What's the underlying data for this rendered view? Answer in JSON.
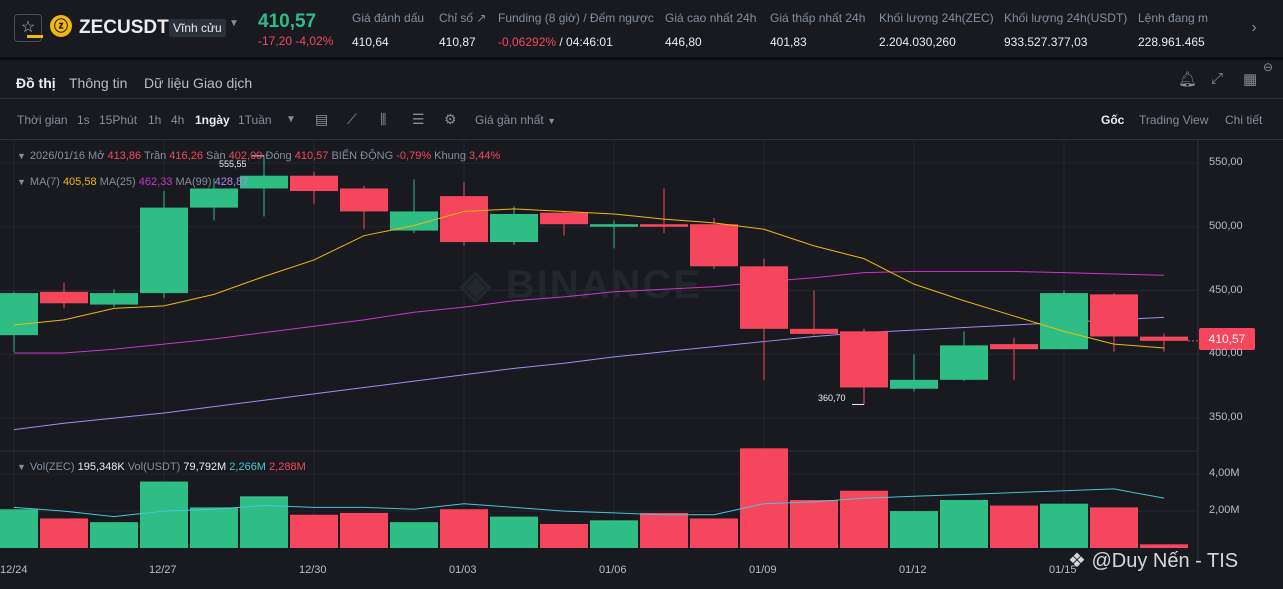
{
  "header": {
    "symbol": "ZECUSDT",
    "contract_type": "Vĩnh cửu",
    "last_price": "410,57",
    "change": "-17,20 -4,02%",
    "stats": [
      {
        "label": "Giá đánh dấu",
        "value": "410,64"
      },
      {
        "label": "Chỉ số ↗",
        "value": "410,87"
      },
      {
        "label": "Funding (8 giờ) / Đếm ngược",
        "value_neg": "-0,06292%",
        "value": " / 04:46:01"
      },
      {
        "label": "Giá cao nhất 24h",
        "value": "446,80"
      },
      {
        "label": "Giá thấp nhất 24h",
        "value": "401,83"
      },
      {
        "label": "Khối lượng 24h(ZEC)",
        "value": "2.204.030,260"
      },
      {
        "label": "Khối lượng 24h(USDT)",
        "value": "933.527.377,03"
      },
      {
        "label": "Lệnh đang m",
        "value": "228.961.465"
      }
    ]
  },
  "tabs": [
    "Đồ thị",
    "Thông tin",
    "Dữ liệu Giao dịch"
  ],
  "toolbar": {
    "time_label": "Thời gian",
    "intervals": [
      "1s",
      "15Phút",
      "1h",
      "4h",
      "1ngày",
      "1Tuần"
    ],
    "active_interval": "1ngày",
    "price_mode": "Giá gần nhất",
    "views": [
      "Gốc",
      "Trading View",
      "Chi tiết"
    ]
  },
  "info": {
    "date": "2026/01/16",
    "open_label": "Mở",
    "open": "413,86",
    "high_label": "Trần",
    "high": "416,26",
    "low_label": "Sàn",
    "low": "402,00",
    "close_label": "Đóng",
    "close": "410,57",
    "change_label": "BIẾN ĐỘNG",
    "change": "-0,79%",
    "range_label": "Khung",
    "range": "3,44%"
  },
  "ma_info": {
    "ma7_label": "MA(7)",
    "ma7": "405,58",
    "ma25_label": "MA(25)",
    "ma25": "462,33",
    "ma99_label": "MA(99)",
    "ma99": "428,87"
  },
  "vol_info": {
    "vol_zec_label": "Vol(ZEC)",
    "vol_zec": "195,348K",
    "vol_usdt_label": "Vol(USDT)",
    "vol_usdt": "79,792M",
    "v1": "2,266M",
    "v2": "2,288M"
  },
  "price_tag": "410,57",
  "high_marker": "555,55",
  "low_marker": "360,70",
  "watermark": "@Duy Nến - TIS",
  "binance_watermark": "BINANCE",
  "colors": {
    "up": "#2ebd85",
    "down": "#f6465d",
    "ma7": "#f0b90b",
    "ma25": "#c936c9",
    "ma99": "#a88cf0",
    "vol_ma": "#4bc4d9"
  },
  "chart_data": {
    "type": "candlestick",
    "interval": "1ngày",
    "x_ticks": [
      "12/24",
      "12/27",
      "12/30",
      "01/03",
      "01/06",
      "01/09",
      "01/12",
      "01/15"
    ],
    "y_ticks": [
      "550,00",
      "500,00",
      "450,00",
      "400,00",
      "350,00"
    ],
    "ylim": [
      325,
      568
    ],
    "vol_ticks": [
      "4,00M",
      "2,00M"
    ],
    "vol_lim": [
      0,
      5.2
    ],
    "candles": [
      {
        "o": 415,
        "h": 449,
        "l": 402,
        "c": 448,
        "v": 2.1
      },
      {
        "o": 449,
        "h": 456,
        "l": 436,
        "c": 440,
        "v": 1.6
      },
      {
        "o": 439,
        "h": 451,
        "l": 437,
        "c": 448,
        "v": 1.4
      },
      {
        "o": 448,
        "h": 528,
        "l": 444,
        "c": 515,
        "v": 3.6
      },
      {
        "o": 515,
        "h": 538,
        "l": 505,
        "c": 530,
        "v": 2.2
      },
      {
        "o": 530,
        "h": 555.55,
        "l": 508,
        "c": 540,
        "v": 2.8
      },
      {
        "o": 540,
        "h": 543,
        "l": 518,
        "c": 528,
        "v": 1.8
      },
      {
        "o": 530,
        "h": 532,
        "l": 498,
        "c": 512,
        "v": 1.9
      },
      {
        "o": 497,
        "h": 537,
        "l": 495,
        "c": 512,
        "v": 1.4
      },
      {
        "o": 524,
        "h": 535,
        "l": 485,
        "c": 488,
        "v": 2.1
      },
      {
        "o": 488,
        "h": 516,
        "l": 486,
        "c": 510,
        "v": 1.7
      },
      {
        "o": 511,
        "h": 512,
        "l": 493,
        "c": 502,
        "v": 1.3
      },
      {
        "o": 500,
        "h": 505,
        "l": 483,
        "c": 502,
        "v": 1.5
      },
      {
        "o": 502,
        "h": 530,
        "l": 495,
        "c": 500,
        "v": 1.9
      },
      {
        "o": 502,
        "h": 507,
        "l": 467,
        "c": 469,
        "v": 1.6
      },
      {
        "o": 469,
        "h": 475,
        "l": 380,
        "c": 420,
        "v": 5.4
      },
      {
        "o": 420,
        "h": 450,
        "l": 415,
        "c": 416,
        "v": 2.6
      },
      {
        "o": 418,
        "h": 420,
        "l": 360.7,
        "c": 374,
        "v": 3.1
      },
      {
        "o": 373,
        "h": 400,
        "l": 371,
        "c": 380,
        "v": 2.0
      },
      {
        "o": 380,
        "h": 418,
        "l": 379,
        "c": 407,
        "v": 2.6
      },
      {
        "o": 408,
        "h": 413,
        "l": 380,
        "c": 404,
        "v": 2.3
      },
      {
        "o": 404,
        "h": 450,
        "l": 404,
        "c": 448,
        "v": 2.4
      },
      {
        "o": 447,
        "h": 448,
        "l": 402,
        "c": 414,
        "v": 2.2
      },
      {
        "o": 413.86,
        "h": 416.26,
        "l": 402,
        "c": 410.57,
        "v": 0.2
      }
    ],
    "ma7": [
      423,
      427,
      436,
      438,
      447,
      461,
      474,
      493,
      501,
      512,
      514,
      512,
      510,
      506,
      503,
      498,
      485,
      475,
      455,
      442,
      430,
      418,
      408,
      405
    ],
    "ma25": [
      401,
      401,
      404,
      408,
      412,
      417,
      422,
      427,
      433,
      437,
      442,
      445,
      449,
      451,
      453,
      457,
      460,
      464,
      465,
      465,
      465,
      464,
      463,
      462
    ],
    "ma99": [
      341,
      346,
      350,
      354,
      359,
      364,
      369,
      374,
      379,
      384,
      389,
      393,
      398,
      402,
      406,
      410,
      414,
      417,
      419,
      421,
      423,
      425,
      427,
      429
    ],
    "vol_ma": [
      2.2,
      2.0,
      1.7,
      2.0,
      2.1,
      2.3,
      2.2,
      2.2,
      2.1,
      2.4,
      2.2,
      2.0,
      1.9,
      1.8,
      1.8,
      2.4,
      2.5,
      2.7,
      2.8,
      2.9,
      3.0,
      3.1,
      3.2,
      2.7
    ]
  }
}
